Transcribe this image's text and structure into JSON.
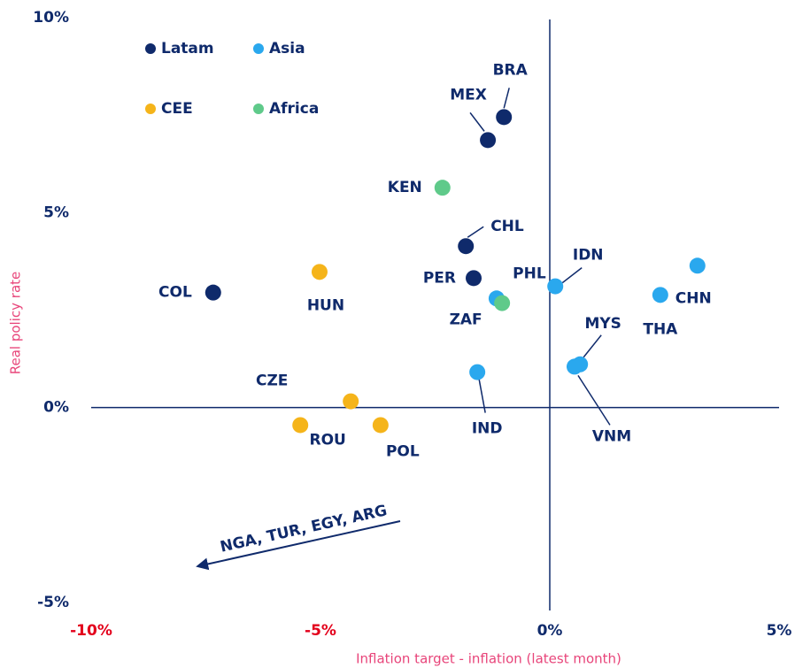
{
  "chart_data": {
    "type": "scatter",
    "xlabel": "Inflation target - inflation (latest month)",
    "ylabel": "Real policy rate",
    "xlim": [
      -10,
      5
    ],
    "ylim": [
      -5,
      10
    ],
    "xticks": [
      {
        "value": -10,
        "label": "-10%"
      },
      {
        "value": -5,
        "label": "-5%"
      },
      {
        "value": 0,
        "label": "0%"
      },
      {
        "value": 5,
        "label": "5%"
      }
    ],
    "yticks": [
      {
        "value": -5,
        "label": "-5%"
      },
      {
        "value": 0,
        "label": "0%"
      },
      {
        "value": 5,
        "label": "5%"
      },
      {
        "value": 10,
        "label": "10%"
      }
    ],
    "xtick_colors": [
      "#e3001b",
      "#e3001b",
      "#0f2a6b",
      "#0f2a6b"
    ],
    "annotation": "NGA, TUR, EGY, ARG",
    "series": [
      {
        "name": "Latam",
        "color": "#0f2a6b",
        "labels": [
          "BRA",
          "MEX",
          "CHL",
          "PER",
          "COL"
        ],
        "x": [
          -1.0,
          -1.35,
          -1.83,
          -1.66,
          -7.34
        ],
        "y": [
          7.45,
          6.86,
          4.14,
          3.32,
          2.95
        ]
      },
      {
        "name": "Asia",
        "color": "#2aa8ee",
        "labels": [
          "CHN",
          "THA",
          "IDN",
          "PHL",
          "MYS",
          "VNM",
          "IND"
        ],
        "x": [
          3.22,
          2.41,
          0.12,
          -1.16,
          0.66,
          0.54,
          -1.58
        ],
        "y": [
          3.64,
          2.89,
          3.11,
          2.8,
          1.11,
          1.05,
          0.91
        ]
      },
      {
        "name": "CEE",
        "color": "#f5b41a",
        "labels": [
          "HUN",
          "CZE",
          "ROU",
          "POL"
        ],
        "x": [
          -5.02,
          -4.34,
          -5.44,
          -3.69
        ],
        "y": [
          3.48,
          0.16,
          -0.45,
          -0.45
        ]
      },
      {
        "name": "Africa",
        "color": "#5fca8a",
        "labels": [
          "KEN",
          "ZAF"
        ],
        "x": [
          -2.34,
          -1.04
        ],
        "y": [
          5.64,
          2.68
        ]
      }
    ]
  }
}
